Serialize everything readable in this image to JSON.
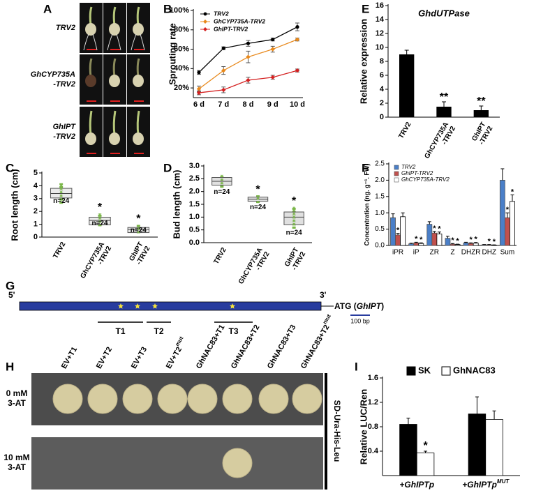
{
  "chart_data": [
    {
      "panel": "B",
      "type": "line",
      "ylabel": "Sprouting rate",
      "categories": [
        "6 d",
        "7 d",
        "8 d",
        "9 d",
        "10 d"
      ],
      "ylim": [
        10,
        100
      ],
      "yticks": [
        {
          "value": 20,
          "label": "20%"
        },
        {
          "value": 40,
          "label": "40%"
        },
        {
          "value": 60,
          "label": "60%"
        },
        {
          "value": 80,
          "label": "80%"
        },
        {
          "value": 100,
          "label": "100%"
        }
      ],
      "legend": "upper left",
      "series": [
        {
          "name": "TRV2",
          "color": "#000000",
          "marker": "circle",
          "values": [
            36,
            61,
            66,
            70,
            83
          ],
          "errors": [
            2,
            1.5,
            3,
            1.5,
            4
          ]
        },
        {
          "name": "GhCYP735A-TRV2",
          "color": "#e8891c",
          "marker": "diamond",
          "values": [
            19,
            38,
            52,
            60,
            70
          ],
          "errors": [
            3,
            4,
            6,
            3,
            1.5
          ]
        },
        {
          "name": "GhIPT-TRV2",
          "color": "#d42020",
          "marker": "diamond",
          "values": [
            15,
            18,
            28,
            31,
            38
          ],
          "errors": [
            2,
            3,
            3,
            2,
            1.5
          ]
        }
      ]
    },
    {
      "panel": "C",
      "type": "box",
      "ylabel": "Root length (cm)",
      "categories": [
        "TRV2",
        "GhCYP735A\n-TRV2",
        "GhIPT\n-TRV2"
      ],
      "ylim": [
        0,
        5
      ],
      "yticks": [
        0,
        1,
        2,
        3,
        4,
        5
      ],
      "box_color": "#e3e3e3",
      "point_color": "#7ab648",
      "boxes": [
        {
          "min": 2.6,
          "q1": 3.05,
          "median": 3.4,
          "q3": 3.8,
          "max": 4.2
        },
        {
          "min": 0.85,
          "q1": 0.95,
          "median": 1.3,
          "q3": 1.55,
          "max": 1.85
        },
        {
          "min": 0.3,
          "q1": 0.35,
          "median": 0.6,
          "q3": 0.75,
          "max": 0.95
        }
      ],
      "n_labels": [
        "n=24",
        "n=24",
        "n=24"
      ],
      "significance": [
        null,
        "*",
        "*"
      ]
    },
    {
      "panel": "D",
      "type": "box",
      "ylabel": "Bud length (cm)",
      "categories": [
        "TRV2",
        "GhCYP735A\n-TRV2",
        "GhIPT\n-TRV2"
      ],
      "ylim": [
        0,
        3
      ],
      "yticks": [
        {
          "value": 0,
          "label": "0.0"
        },
        0.5,
        {
          "value": 1,
          "label": "1.0"
        },
        1.5,
        {
          "value": 2,
          "label": "2.0"
        },
        2.5,
        {
          "value": 3,
          "label": "3.0"
        }
      ],
      "box_color": "#d6d6d6",
      "point_color": "#7ab648",
      "boxes": [
        {
          "min": 2.15,
          "q1": 2.25,
          "median": 2.4,
          "q3": 2.55,
          "max": 2.65
        },
        {
          "min": 1.55,
          "q1": 1.62,
          "median": 1.7,
          "q3": 1.78,
          "max": 1.85
        },
        {
          "min": 0.55,
          "q1": 0.7,
          "median": 1.0,
          "q3": 1.2,
          "max": 1.4
        }
      ],
      "n_labels": [
        "n=24",
        "n=24",
        "n=24"
      ],
      "significance": [
        null,
        "*",
        "*"
      ]
    },
    {
      "panel": "E",
      "type": "bar",
      "title": "GhdUTPase",
      "ylabel": "Relative expression",
      "categories": [
        "TRV2",
        "GhCYP735A\n-TRV2",
        "GhIPT\n-TRV2"
      ],
      "ylim": [
        0,
        16
      ],
      "yticks": [
        0,
        2,
        4,
        6,
        8,
        10,
        12,
        14,
        16
      ],
      "color": "#000000",
      "values": [
        9,
        1.5,
        1
      ],
      "errors": [
        0.6,
        0.7,
        0.6
      ],
      "significance": [
        null,
        "**",
        "**"
      ]
    },
    {
      "panel": "F",
      "type": "bar",
      "ylabel": "Concentration (ng. g⁻¹. FW)",
      "categories": [
        "iPR",
        "iP",
        "ZR",
        "Z",
        "DHZR",
        "DHZ",
        "Sum"
      ],
      "ylim": [
        0,
        2.5
      ],
      "yticks": [
        {
          "value": 0,
          "label": "0.0"
        },
        0.5,
        {
          "value": 1,
          "label": "1.0"
        },
        1.5,
        {
          "value": 2,
          "label": "2.0"
        },
        2.5
      ],
      "legend": "upper left",
      "series": [
        {
          "name": "TRV2",
          "color": "#4a7fc8",
          "values": [
            0.85,
            0.05,
            0.65,
            0.22,
            0.08,
            0.02,
            2.0
          ],
          "errors": [
            0.12,
            0.02,
            0.08,
            0.06,
            0.02,
            0.01,
            0.35
          ],
          "significance": [
            null,
            null,
            null,
            null,
            null,
            null,
            null
          ]
        },
        {
          "name": "GhIPT-TRV2",
          "color": "#c0504d",
          "values": [
            0.32,
            0.08,
            0.38,
            0.04,
            0.06,
            0.02,
            0.85
          ],
          "errors": [
            0.05,
            0.02,
            0.05,
            0.02,
            0.02,
            0.01,
            0.15
          ],
          "significance": [
            "*",
            "*",
            "*",
            "*",
            "*",
            "*",
            "*"
          ]
        },
        {
          "name": "GhCYP735A-TRV2",
          "color": "#ffffff",
          "values": [
            0.88,
            0.06,
            0.35,
            0.03,
            0.07,
            0.01,
            1.35
          ],
          "errors": [
            0.12,
            0.02,
            0.06,
            0.01,
            0.02,
            0.01,
            0.2
          ],
          "significance": [
            null,
            "*",
            "*",
            "*",
            "*",
            "*",
            "*"
          ]
        }
      ]
    },
    {
      "panel": "I",
      "type": "bar",
      "ylabel": "Relative LUC/Ren",
      "categories": [
        "+GhIPTp",
        "+GhIPTp"
      ],
      "category_superscripts": [
        null,
        "MUT"
      ],
      "ylim": [
        0,
        1.6
      ],
      "yticks": [
        0.4,
        0.8,
        1.2,
        1.6
      ],
      "legend": "top",
      "series": [
        {
          "name": "SK",
          "color": "#000000",
          "values": [
            0.84,
            1.01
          ],
          "errors": [
            0.1,
            0.28
          ],
          "significance": [
            null,
            null
          ]
        },
        {
          "name": "GhNAC83",
          "color": "#ffffff",
          "values": [
            0.37,
            0.92
          ],
          "errors": [
            0.03,
            0.14
          ],
          "significance": [
            "*",
            null
          ]
        }
      ]
    }
  ],
  "panel_a": {
    "label": "A",
    "rows": [
      [
        "TRV2"
      ],
      [
        "GhCYP735A",
        "-TRV2"
      ],
      [
        "GhIPT",
        "-TRV2"
      ]
    ]
  },
  "panel_g": {
    "label": "G",
    "five_prime": "5'",
    "three_prime": "3'",
    "gene_label": [
      "ATG (",
      "GhIPT",
      ")"
    ],
    "regions": [
      "T1",
      "T2",
      "T3"
    ],
    "scale_bar": "100 bp"
  },
  "panel_h": {
    "label": "H",
    "columns": [
      {
        "text": "EV+T1"
      },
      {
        "text": "EV+T2"
      },
      {
        "text": "EV+T3"
      },
      {
        "text": "EV+T2",
        "sup": "mut"
      },
      {
        "text": "GhNAC83+T1"
      },
      {
        "text": "GhNAC83+T2"
      },
      {
        "text": "GhNAC83+T3"
      },
      {
        "text": "GhNAC83+T2",
        "sup": "mut"
      }
    ],
    "rows": [
      [
        "0 mM",
        "3-AT"
      ],
      [
        "10 mM",
        "3-AT"
      ]
    ],
    "growth": [
      [
        true,
        true,
        true,
        true,
        true,
        true,
        true,
        true
      ],
      [
        false,
        false,
        false,
        false,
        false,
        true,
        false,
        false
      ]
    ],
    "medium": "SD-Ura-His-Leu"
  }
}
